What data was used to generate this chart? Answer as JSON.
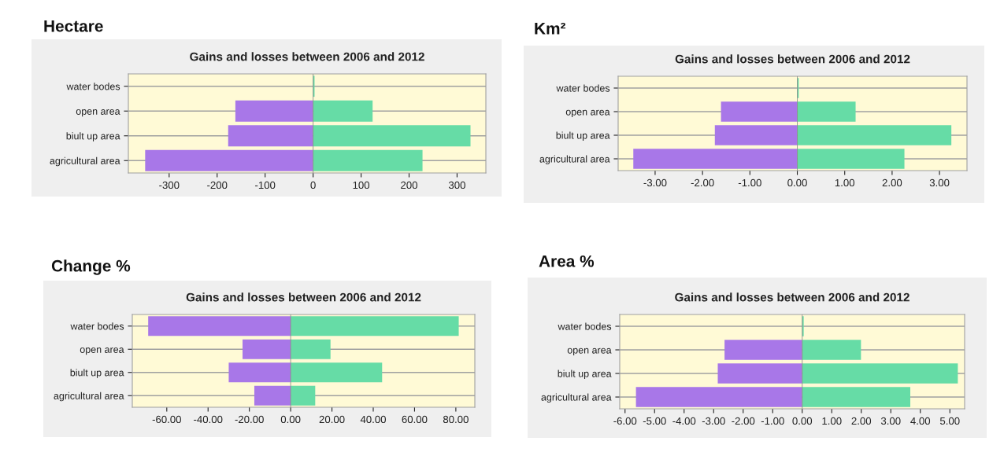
{
  "chart_data": [
    {
      "type": "bar",
      "orientation": "horizontal",
      "stacked": true,
      "title": "Hectare",
      "subtitle": "Gains and losses between 2006 and 2012",
      "categories": [
        "water bodes",
        "open area",
        "biult up area",
        "agricultural area"
      ],
      "series": [
        {
          "color": "#a877e8",
          "values": [
            0,
            -162,
            -177,
            -350
          ]
        },
        {
          "color": "#66dca6",
          "values": [
            3,
            124,
            328,
            228
          ]
        }
      ],
      "xlim": [
        -385,
        360
      ],
      "xticks": [
        -300,
        -200,
        -100,
        0,
        100,
        200,
        300
      ],
      "grid": "y"
    },
    {
      "type": "bar",
      "orientation": "horizontal",
      "stacked": true,
      "title": "Km²",
      "subtitle": "Gains and losses between 2006 and 2012",
      "categories": [
        "water bodes",
        "open area",
        "biult up area",
        "agricultural area"
      ],
      "series": [
        {
          "color": "#a877e8",
          "values": [
            0,
            -1.61,
            -1.74,
            -3.46
          ]
        },
        {
          "color": "#66dca6",
          "values": [
            0.03,
            1.23,
            3.25,
            2.26
          ]
        }
      ],
      "xlim": [
        -3.78,
        3.58
      ],
      "xticks": [
        {
          "value": -3,
          "label": "-3.00"
        },
        {
          "value": -2,
          "label": "-2.00"
        },
        {
          "value": -1,
          "label": "-1.00"
        },
        {
          "value": 0,
          "label": "0.00"
        },
        {
          "value": 1,
          "label": "1.00"
        },
        {
          "value": 2,
          "label": "2.00"
        },
        {
          "value": 3,
          "label": "3.00"
        }
      ],
      "grid": "y"
    },
    {
      "type": "bar",
      "orientation": "horizontal",
      "stacked": true,
      "title": "Change %",
      "subtitle": "Gains and losses between 2006 and 2012",
      "categories": [
        "water bodes",
        "open area",
        "biult up area",
        "agricultural area"
      ],
      "series": [
        {
          "color": "#a877e8",
          "values": [
            -69,
            -23.3,
            -30,
            -17.6
          ]
        },
        {
          "color": "#66dca6",
          "values": [
            81.4,
            19.3,
            44.3,
            11.9
          ]
        }
      ],
      "xlim": [
        -76.7,
        89.2
      ],
      "xticks": [
        {
          "value": -60,
          "label": "-60.00"
        },
        {
          "value": -40,
          "label": "-40.00"
        },
        {
          "value": -20,
          "label": "-20.00"
        },
        {
          "value": 0,
          "label": "0.00"
        },
        {
          "value": 20,
          "label": "20.00"
        },
        {
          "value": 40,
          "label": "40.00"
        },
        {
          "value": 60,
          "label": "60.00"
        },
        {
          "value": 80,
          "label": "80.00"
        }
      ],
      "grid": "y"
    },
    {
      "type": "bar",
      "orientation": "horizontal",
      "stacked": true,
      "title": "Area %",
      "subtitle": "Gains and losses between 2006 and 2012",
      "categories": [
        "water bodes",
        "open area",
        "biult up area",
        "agricultural area"
      ],
      "series": [
        {
          "color": "#a877e8",
          "values": [
            0,
            -2.63,
            -2.86,
            -5.63
          ]
        },
        {
          "color": "#66dca6",
          "values": [
            0.05,
            1.99,
            5.27,
            3.66
          ]
        }
      ],
      "xlim": [
        -6.18,
        5.5
      ],
      "xticks": [
        {
          "value": -6,
          "label": "-6.00"
        },
        {
          "value": -5,
          "label": "-5.00"
        },
        {
          "value": -4,
          "label": "-4.00"
        },
        {
          "value": -3,
          "label": "-3.00"
        },
        {
          "value": -2,
          "label": "-2.00"
        },
        {
          "value": -1,
          "label": "-1.00"
        },
        {
          "value": 0,
          "label": "0.00"
        },
        {
          "value": 1,
          "label": "1.00"
        },
        {
          "value": 2,
          "label": "2.00"
        },
        {
          "value": 3,
          "label": "3.00"
        },
        {
          "value": 4,
          "label": "4.00"
        },
        {
          "value": 5,
          "label": "5.00"
        }
      ],
      "grid": "y"
    }
  ]
}
